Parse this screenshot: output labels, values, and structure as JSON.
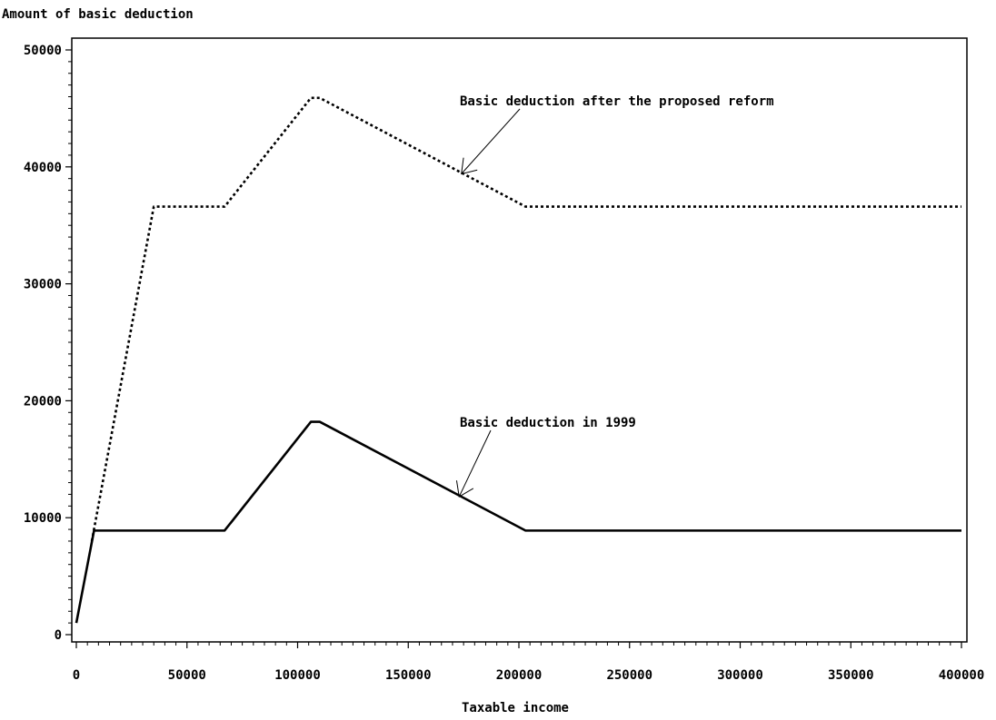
{
  "chart_data": {
    "type": "line",
    "title": "",
    "ylabel": "Amount of basic deduction",
    "xlabel": "Taxable income",
    "xlim": [
      0,
      400000
    ],
    "ylim": [
      0,
      50000
    ],
    "x_ticks": [
      "0",
      "50000",
      "100000",
      "150000",
      "200000",
      "250000",
      "300000",
      "350000",
      "400000"
    ],
    "y_ticks": [
      "0",
      "10000",
      "20000",
      "30000",
      "40000",
      "50000"
    ],
    "grid": false,
    "legend": "none",
    "series": [
      {
        "name": "Basic deduction in 1999",
        "style": "solid",
        "color": "#000000",
        "x": [
          0,
          8000,
          67000,
          106000,
          110000,
          203000,
          400000
        ],
        "y": [
          1000,
          8900,
          8900,
          18200,
          18200,
          8900,
          8900
        ]
      },
      {
        "name": "Basic deduction after the proposed reform",
        "style": "dotted",
        "color": "#000000",
        "x": [
          7000,
          35000,
          67000,
          106000,
          110000,
          203000,
          400000
        ],
        "y": [
          8000,
          36600,
          36600,
          45900,
          45900,
          36600,
          36600
        ]
      }
    ],
    "annotations": [
      {
        "text": "Basic deduction after the proposed reform",
        "series": 1,
        "point_x": 174000,
        "point_y": 39400,
        "anchor": "upper-middle"
      },
      {
        "text": "Basic deduction in 1999",
        "series": 0,
        "point_x": 173000,
        "point_y": 11800,
        "anchor": "middle"
      }
    ]
  }
}
